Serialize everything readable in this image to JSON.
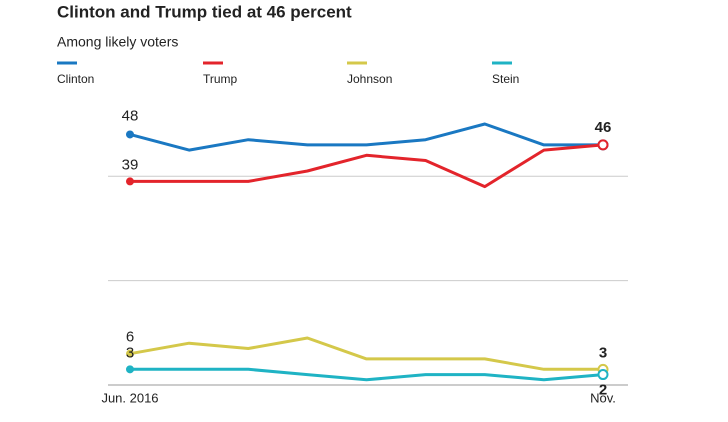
{
  "chart_data": {
    "type": "line",
    "title": "Clinton and Trump tied at 46 percent",
    "subtitle": "Among likely voters",
    "categories": [
      "Jun. 2016",
      null,
      null,
      null,
      null,
      null,
      null,
      null,
      "Nov."
    ],
    "series": [
      {
        "name": "Clinton",
        "color": "#1a78c2",
        "values": [
          48,
          45,
          47,
          46,
          46,
          47,
          50,
          46,
          46
        ]
      },
      {
        "name": "Trump",
        "color": "#e3242b",
        "values": [
          39,
          39,
          39,
          41,
          44,
          43,
          38,
          45,
          46
        ]
      },
      {
        "name": "Johnson",
        "color": "#d4c84a",
        "values": [
          6,
          8,
          7,
          9,
          5,
          5,
          5,
          3,
          3
        ]
      },
      {
        "name": "Stein",
        "color": "#1fb3c4",
        "values": [
          3,
          3,
          3,
          2,
          1,
          2,
          2,
          1,
          2
        ]
      }
    ],
    "ylim": [
      0,
      50
    ],
    "yticks": [
      0,
      20,
      40
    ],
    "grid": true
  }
}
